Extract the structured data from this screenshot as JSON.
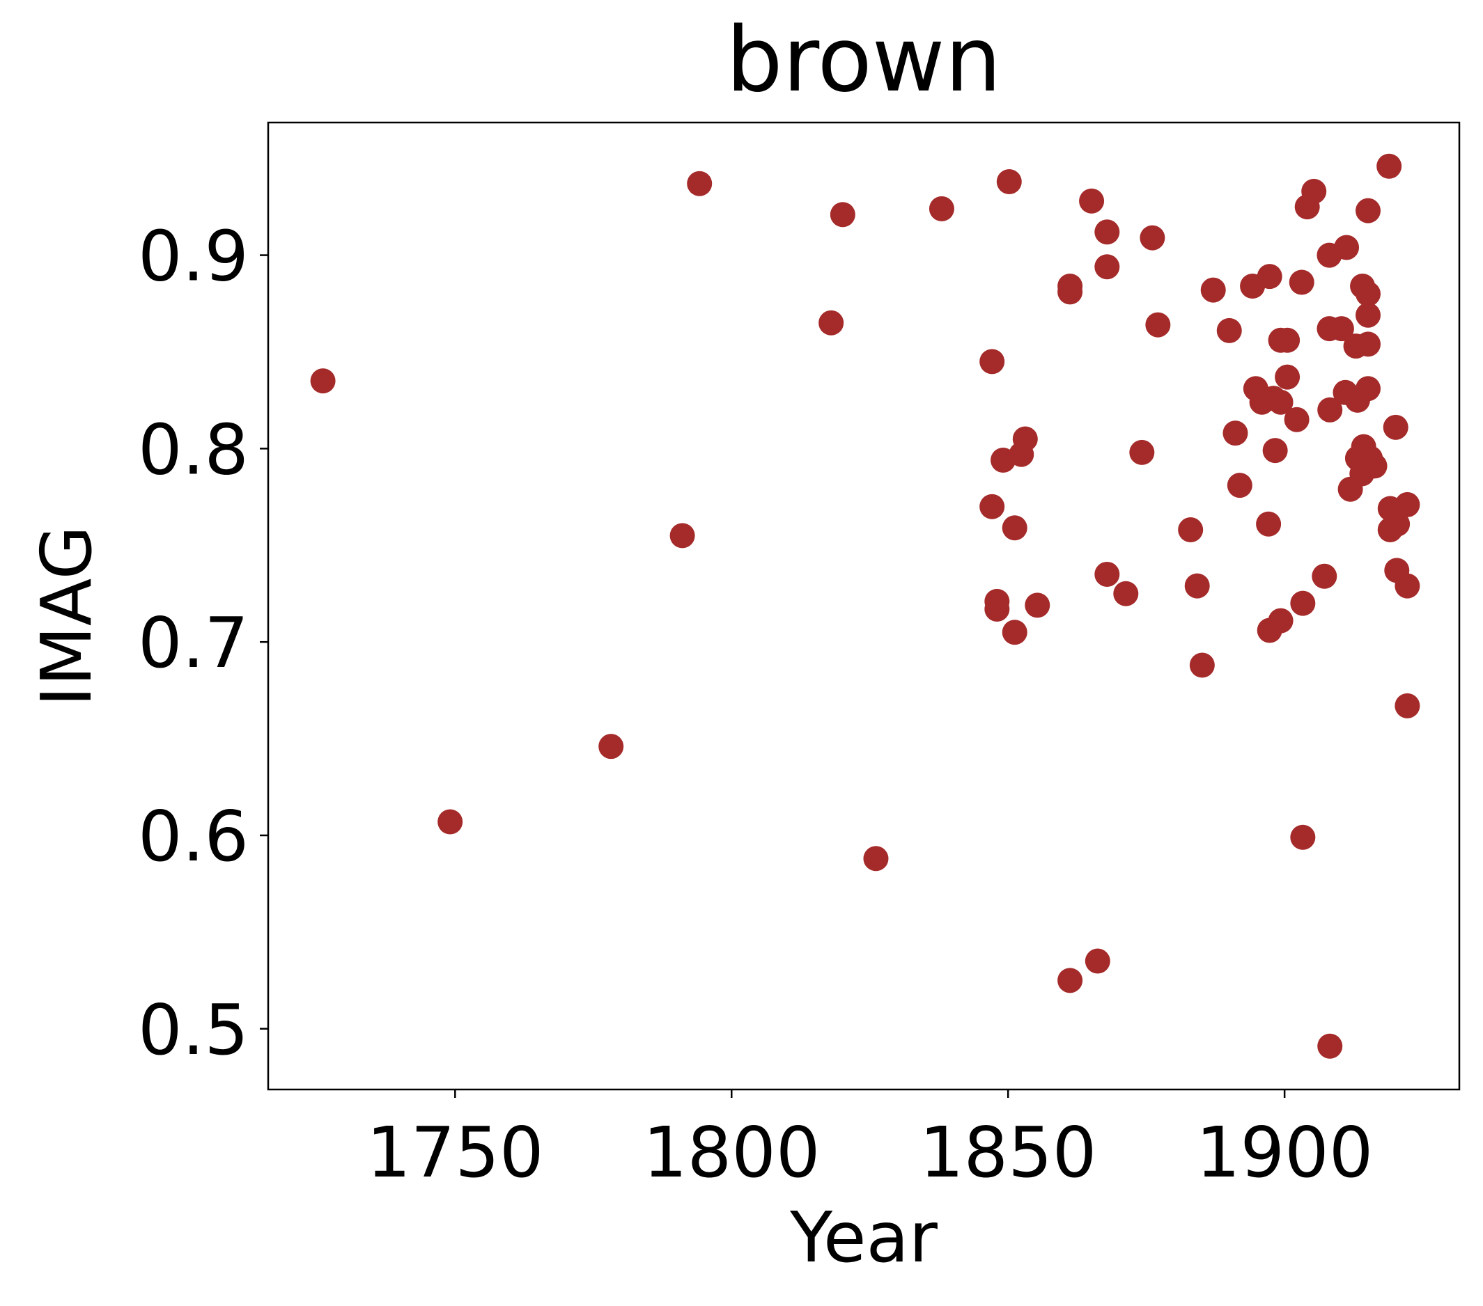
{
  "chart_data": {
    "type": "scatter",
    "title": "brown",
    "x_label": "Year",
    "y_label": "IMAG",
    "color": "#a52a2a",
    "x": [
      1726.1,
      1749.1,
      1778.2,
      1791.1,
      1794.2,
      1818.0,
      1820.1,
      1826.1,
      1838.0,
      1847.1,
      1847.1,
      1848.0,
      1848.0,
      1849.1,
      1850.2,
      1851.2,
      1851.2,
      1852.4,
      1853.1,
      1855.3,
      1861.2,
      1861.2,
      1861.2,
      1865.1,
      1866.2,
      1867.9,
      1867.9,
      1867.9,
      1871.3,
      1874.2,
      1876.1,
      1877.1,
      1883.0,
      1884.2,
      1885.1,
      1887.1,
      1890.0,
      1891.1,
      1891.9,
      1894.2,
      1894.8,
      1895.9,
      1897.1,
      1897.3,
      1897.3,
      1898.0,
      1898.3,
      1899.3,
      1899.3,
      1899.3,
      1900.5,
      1900.5,
      1902.2,
      1903.1,
      1903.3,
      1903.3,
      1904.1,
      1905.3,
      1907.2,
      1908.1,
      1908.1,
      1908.2,
      1908.2,
      1910.3,
      1911.0,
      1911.2,
      1911.9,
      1912.9,
      1913.2,
      1913.2,
      1914.0,
      1914.1,
      1914.3,
      1915.1,
      1915.1,
      1915.1,
      1915.1,
      1915.1,
      1915.5,
      1916.3,
      1918.9,
      1919.1,
      1919.1,
      1920.1,
      1920.3,
      1920.4,
      1922.2,
      1922.2,
      1922.2
    ],
    "values": [
      0.835,
      0.607,
      0.646,
      0.755,
      0.937,
      0.865,
      0.921,
      0.588,
      0.924,
      0.845,
      0.77,
      0.721,
      0.717,
      0.794,
      0.938,
      0.759,
      0.705,
      0.797,
      0.805,
      0.719,
      0.884,
      0.881,
      0.525,
      0.928,
      0.535,
      0.912,
      0.894,
      0.735,
      0.725,
      0.798,
      0.909,
      0.864,
      0.758,
      0.729,
      0.688,
      0.882,
      0.861,
      0.808,
      0.781,
      0.884,
      0.831,
      0.824,
      0.761,
      0.706,
      0.889,
      0.826,
      0.799,
      0.824,
      0.711,
      0.856,
      0.856,
      0.837,
      0.815,
      0.886,
      0.72,
      0.599,
      0.925,
      0.933,
      0.734,
      0.9,
      0.862,
      0.82,
      0.491,
      0.862,
      0.829,
      0.904,
      0.779,
      0.853,
      0.825,
      0.795,
      0.787,
      0.884,
      0.801,
      0.854,
      0.88,
      0.869,
      0.831,
      0.923,
      0.795,
      0.791,
      0.946,
      0.769,
      0.758,
      0.811,
      0.737,
      0.761,
      0.771,
      0.729,
      0.667
    ],
    "xlim": [
      1716.2,
      1931.6
    ],
    "ylim": [
      0.4686,
      0.9686
    ],
    "xticks": [
      1750,
      1800,
      1850,
      1900
    ],
    "yticks": [
      0.5,
      0.6,
      0.7,
      0.8,
      0.9
    ]
  }
}
